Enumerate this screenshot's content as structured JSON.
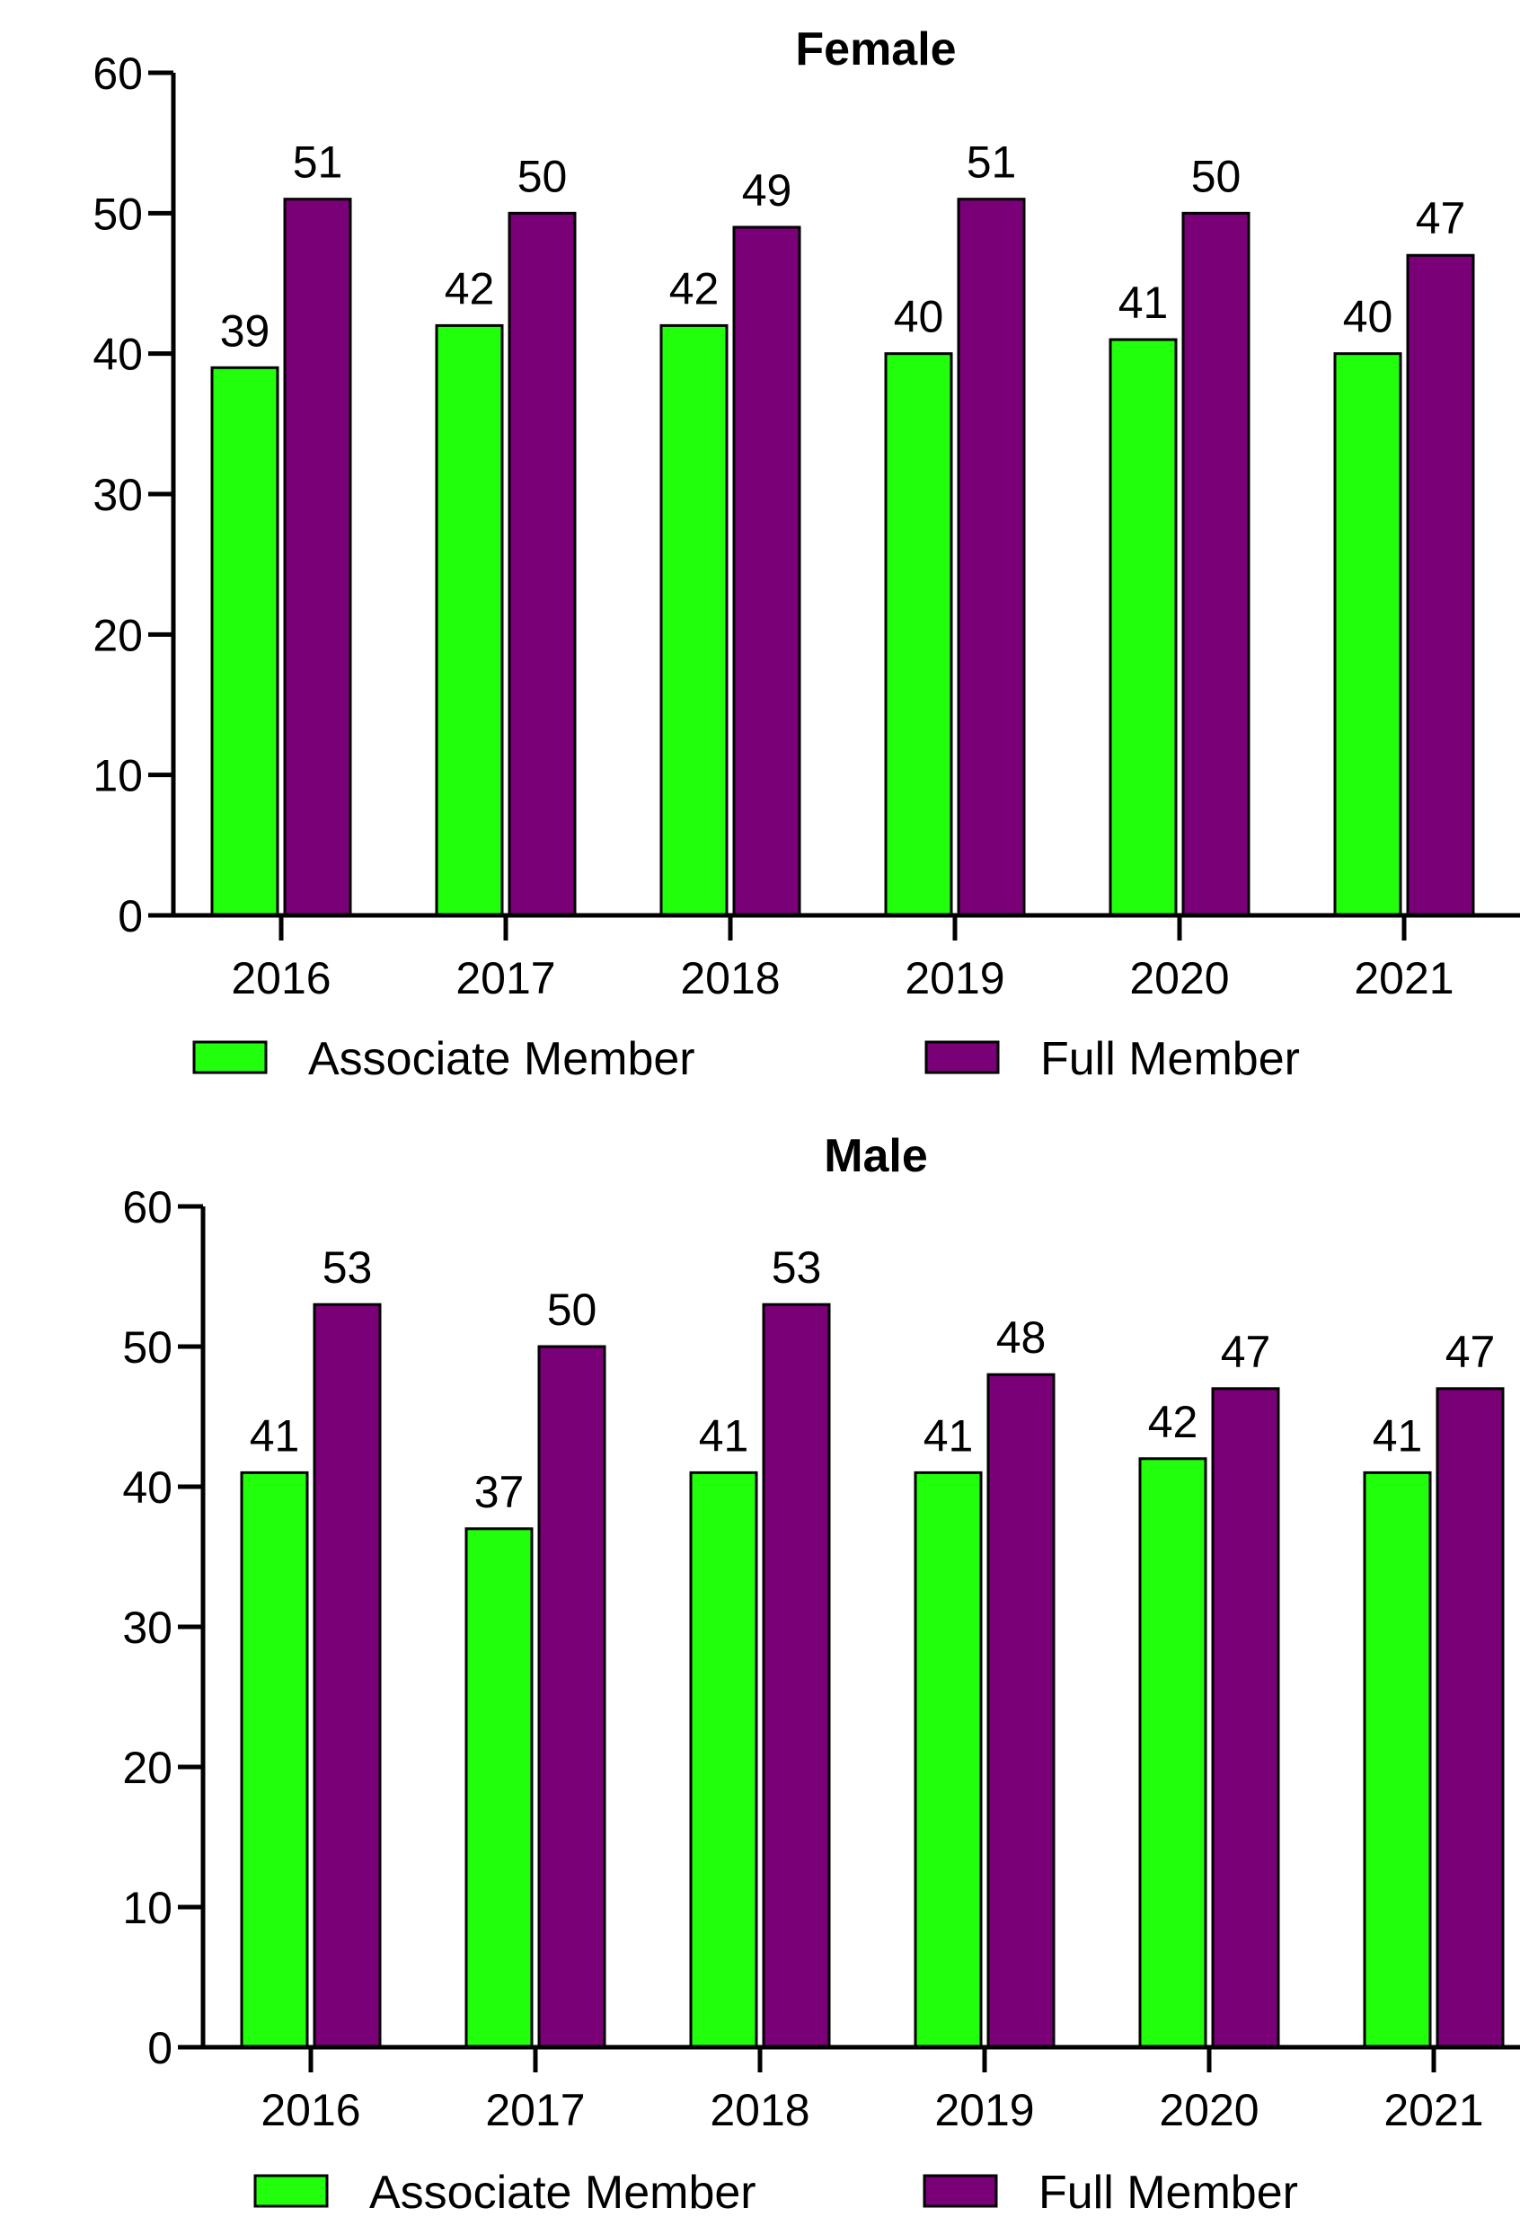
{
  "colors": {
    "associate": "#22ff0d",
    "full": "#7a0078",
    "axis": "#000000",
    "background": "#ffffff"
  },
  "chart_data": [
    {
      "type": "bar",
      "title": "Female",
      "categories": [
        "2016",
        "2017",
        "2018",
        "2019",
        "2020",
        "2021"
      ],
      "series": [
        {
          "name": "Associate Member",
          "values": [
            39,
            42,
            42,
            40,
            41,
            40
          ]
        },
        {
          "name": "Full Member",
          "values": [
            51,
            50,
            49,
            51,
            50,
            47
          ]
        }
      ],
      "ylim": [
        0,
        60
      ],
      "yticks": [
        "0",
        "10",
        "20",
        "30",
        "40",
        "50",
        "60"
      ],
      "grid": false,
      "legend_position": "bottom"
    },
    {
      "type": "bar",
      "title": "Male",
      "categories": [
        "2016",
        "2017",
        "2018",
        "2019",
        "2020",
        "2021"
      ],
      "series": [
        {
          "name": "Associate Member",
          "values": [
            41,
            37,
            41,
            41,
            42,
            41
          ]
        },
        {
          "name": "Full Member",
          "values": [
            53,
            50,
            53,
            48,
            47,
            47
          ]
        }
      ],
      "ylim": [
        0,
        60
      ],
      "yticks": [
        "0",
        "10",
        "20",
        "30",
        "40",
        "50",
        "60"
      ],
      "grid": false,
      "legend_position": "bottom"
    }
  ]
}
